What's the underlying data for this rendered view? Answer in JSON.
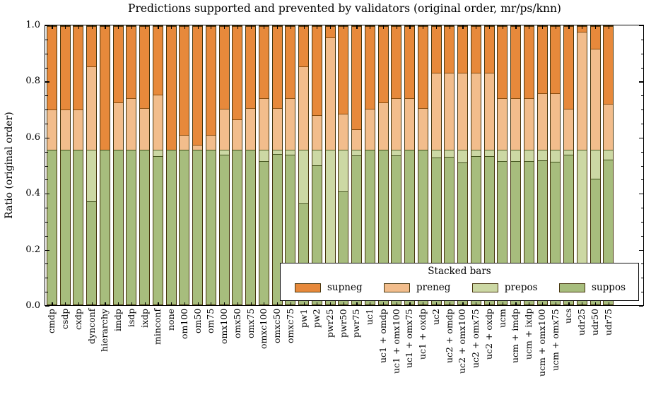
{
  "title": "Predictions supported and prevented by validators (original order, mr/ps/knn)",
  "ylabel": "Ratio (original order)",
  "legend": {
    "title": "Stacked bars",
    "entries": [
      {
        "label": "supneg",
        "color": "#e7893b"
      },
      {
        "label": "preneg",
        "color": "#f2bd8c"
      },
      {
        "label": "prepos",
        "color": "#ccd8a4"
      },
      {
        "label": "suppos",
        "color": "#a7bd7d"
      }
    ]
  },
  "yticks": {
    "labels": [
      "0.0",
      "0.2",
      "0.4",
      "0.6",
      "0.8",
      "1.0"
    ],
    "values": [
      0.0,
      0.2,
      0.4,
      0.6,
      0.8,
      1.0
    ],
    "minor_step": 0.05
  },
  "colors": {
    "supneg": "#e7893b",
    "preneg": "#f2bd8c",
    "prepos": "#ccd8a4",
    "suppos": "#a7bd7d",
    "axis": "#000000"
  },
  "chart_data": {
    "type": "bar",
    "stacked": true,
    "stack_order_bottom_to_top": [
      "suppos",
      "prepos",
      "preneg",
      "supneg"
    ],
    "title": "Predictions supported and prevented by validators (original order, mr/ps/knn)",
    "xlabel": "",
    "ylabel": "Ratio (original order)",
    "ylim": [
      0.0,
      1.0
    ],
    "grid": false,
    "legend_position": "lower right inside plot",
    "categories": [
      "cmdp",
      "csdp",
      "cxdp",
      "dynconf",
      "hierarchy",
      "imdp",
      "isdp",
      "ixdp",
      "minconf",
      "none",
      "om100",
      "om50",
      "om75",
      "omx100",
      "omx50",
      "omx75",
      "omxc100",
      "omxc50",
      "omxc75",
      "pw1",
      "pw2",
      "pwr25",
      "pwr50",
      "pwr75",
      "uc1",
      "uc1 + omdp",
      "uc1 + omx100",
      "uc1 + omx75",
      "uc1 + oxdp",
      "uc2",
      "uc2 + omdp",
      "uc2 + omx100",
      "uc2 + omx75",
      "uc2 + oxdp",
      "ucm",
      "ucm + imdp",
      "ucm + ixdp",
      "ucm + omx100",
      "ucm + omx75",
      "ucs",
      "udr25",
      "udr50",
      "udr75"
    ],
    "series": [
      {
        "name": "suppos",
        "color": "#a7bd7d",
        "values": [
          0.555,
          0.555,
          0.555,
          0.37,
          0.555,
          0.555,
          0.555,
          0.555,
          0.533,
          0.555,
          0.555,
          0.555,
          0.555,
          0.537,
          0.555,
          0.555,
          0.516,
          0.541,
          0.538,
          0.364,
          0.499,
          0.1,
          0.406,
          0.536,
          0.555,
          0.555,
          0.535,
          0.555,
          0.555,
          0.528,
          0.53,
          0.511,
          0.532,
          0.532,
          0.515,
          0.514,
          0.514,
          0.518,
          0.513,
          0.537,
          0.1,
          0.452,
          0.52
        ]
      },
      {
        "name": "prepos",
        "color": "#ccd8a4",
        "values": [
          0,
          0,
          0,
          0.185,
          0,
          0,
          0,
          0,
          0.022,
          0,
          0,
          0,
          0,
          0.018,
          0,
          0,
          0.039,
          0.014,
          0.017,
          0.191,
          0.056,
          0.455,
          0.149,
          0.019,
          0,
          0,
          0.02,
          0,
          0,
          0.027,
          0.025,
          0.044,
          0.023,
          0.023,
          0.04,
          0.041,
          0.041,
          0.037,
          0.042,
          0.018,
          0.455,
          0.103,
          0.035
        ]
      },
      {
        "name": "preneg",
        "color": "#f2bd8c",
        "values": [
          0.145,
          0.145,
          0.145,
          0.3,
          0,
          0.17,
          0.185,
          0.15,
          0.2,
          0,
          0.055,
          0.018,
          0.055,
          0.147,
          0.11,
          0.15,
          0.185,
          0.151,
          0.187,
          0.3,
          0.125,
          0.405,
          0.13,
          0.075,
          0.147,
          0.17,
          0.185,
          0.185,
          0.15,
          0.277,
          0.277,
          0.277,
          0.277,
          0.277,
          0.185,
          0.185,
          0.185,
          0.205,
          0.205,
          0.149,
          0.425,
          0.365,
          0.167
        ]
      },
      {
        "name": "supneg",
        "color": "#e7893b",
        "values": [
          0.3,
          0.3,
          0.3,
          0.145,
          0.445,
          0.275,
          0.26,
          0.295,
          0.245,
          0.445,
          0.39,
          0.427,
          0.39,
          0.298,
          0.335,
          0.295,
          0.26,
          0.294,
          0.258,
          0.145,
          0.32,
          0.04,
          0.315,
          0.37,
          0.298,
          0.275,
          0.26,
          0.26,
          0.295,
          0.168,
          0.168,
          0.168,
          0.168,
          0.168,
          0.26,
          0.26,
          0.26,
          0.24,
          0.24,
          0.296,
          0.02,
          0.08,
          0.278
        ]
      }
    ]
  }
}
